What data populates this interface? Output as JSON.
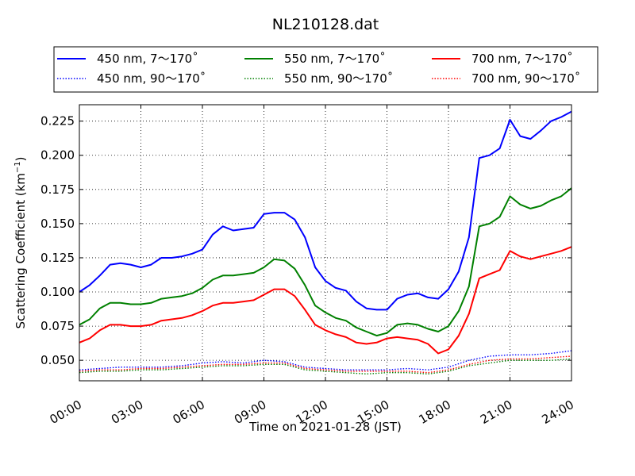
{
  "chart_data": {
    "type": "line",
    "title": "NL210128.dat",
    "xlabel": "Time on 2021-01-28 (JST)",
    "ylabel": "Scattering Coefficient (km",
    "ylabel_sup": "−1",
    "ylabel_end": ")",
    "xlim": [
      0,
      24
    ],
    "ylim": [
      0.035,
      0.237
    ],
    "x_tick_values": [
      0,
      3,
      6,
      9,
      12,
      15,
      18,
      21,
      24
    ],
    "x_tick_labels": [
      "00:00",
      "03:00",
      "06:00",
      "09:00",
      "12:00",
      "15:00",
      "18:00",
      "21:00",
      "24:00"
    ],
    "y_tick_values": [
      0.05,
      0.075,
      0.1,
      0.125,
      0.15,
      0.175,
      0.2,
      0.225
    ],
    "y_tick_labels": [
      "0.050",
      "0.075",
      "0.100",
      "0.125",
      "0.150",
      "0.175",
      "0.200",
      "0.225"
    ],
    "grid": true,
    "legend_placement": "top (above plot, 3 columns)",
    "series": [
      {
        "name": "450 nm, 7～170˚",
        "color": "#0000ff",
        "style": "solid",
        "x": [
          0,
          0.5,
          1,
          1.5,
          2,
          2.5,
          3,
          3.5,
          4,
          4.5,
          5,
          5.5,
          6,
          6.5,
          7,
          7.5,
          8,
          8.5,
          9,
          9.5,
          10,
          10.5,
          11,
          11.5,
          12,
          12.5,
          13,
          13.5,
          14,
          14.5,
          15,
          15.5,
          16,
          16.5,
          17,
          17.5,
          18,
          18.5,
          19,
          19.5,
          20,
          20.5,
          21,
          21.5,
          22,
          22.5,
          23,
          23.5,
          24
        ],
        "y": [
          0.1,
          0.105,
          0.112,
          0.12,
          0.121,
          0.12,
          0.118,
          0.12,
          0.125,
          0.125,
          0.126,
          0.128,
          0.131,
          0.142,
          0.148,
          0.145,
          0.146,
          0.147,
          0.157,
          0.158,
          0.158,
          0.153,
          0.14,
          0.118,
          0.108,
          0.103,
          0.101,
          0.093,
          0.088,
          0.087,
          0.087,
          0.095,
          0.098,
          0.099,
          0.096,
          0.095,
          0.102,
          0.115,
          0.14,
          0.198,
          0.2,
          0.205,
          0.226,
          0.214,
          0.212,
          0.218,
          0.225,
          0.228,
          0.232
        ]
      },
      {
        "name": "550 nm, 7～170˚",
        "color": "#008000",
        "style": "solid",
        "x": [
          0,
          0.5,
          1,
          1.5,
          2,
          2.5,
          3,
          3.5,
          4,
          4.5,
          5,
          5.5,
          6,
          6.5,
          7,
          7.5,
          8,
          8.5,
          9,
          9.5,
          10,
          10.5,
          11,
          11.5,
          12,
          12.5,
          13,
          13.5,
          14,
          14.5,
          15,
          15.5,
          16,
          16.5,
          17,
          17.5,
          18,
          18.5,
          19,
          19.5,
          20,
          20.5,
          21,
          21.5,
          22,
          22.5,
          23,
          23.5,
          24
        ],
        "y": [
          0.076,
          0.08,
          0.088,
          0.092,
          0.092,
          0.091,
          0.091,
          0.092,
          0.095,
          0.096,
          0.097,
          0.099,
          0.103,
          0.109,
          0.112,
          0.112,
          0.113,
          0.114,
          0.118,
          0.124,
          0.123,
          0.117,
          0.105,
          0.09,
          0.085,
          0.081,
          0.079,
          0.074,
          0.071,
          0.068,
          0.07,
          0.076,
          0.077,
          0.076,
          0.073,
          0.071,
          0.075,
          0.086,
          0.104,
          0.148,
          0.15,
          0.155,
          0.17,
          0.164,
          0.161,
          0.163,
          0.167,
          0.17,
          0.176
        ]
      },
      {
        "name": "700 nm, 7～170˚",
        "color": "#ff0000",
        "style": "solid",
        "x": [
          0,
          0.5,
          1,
          1.5,
          2,
          2.5,
          3,
          3.5,
          4,
          4.5,
          5,
          5.5,
          6,
          6.5,
          7,
          7.5,
          8,
          8.5,
          9,
          9.5,
          10,
          10.5,
          11,
          11.5,
          12,
          12.5,
          13,
          13.5,
          14,
          14.5,
          15,
          15.5,
          16,
          16.5,
          17,
          17.5,
          18,
          18.5,
          19,
          19.5,
          20,
          20.5,
          21,
          21.5,
          22,
          22.5,
          23,
          23.5,
          24
        ],
        "y": [
          0.063,
          0.066,
          0.072,
          0.076,
          0.076,
          0.075,
          0.075,
          0.076,
          0.079,
          0.08,
          0.081,
          0.083,
          0.086,
          0.09,
          0.092,
          0.092,
          0.093,
          0.094,
          0.098,
          0.102,
          0.102,
          0.097,
          0.087,
          0.076,
          0.072,
          0.069,
          0.067,
          0.063,
          0.062,
          0.063,
          0.066,
          0.067,
          0.066,
          0.065,
          0.062,
          0.055,
          0.058,
          0.068,
          0.084,
          0.11,
          0.113,
          0.116,
          0.13,
          0.126,
          0.124,
          0.126,
          0.128,
          0.13,
          0.133
        ]
      },
      {
        "name": "450 nm, 90～170˚",
        "color": "#0000ff",
        "style": "dotted",
        "x": [
          0,
          1,
          2,
          3,
          4,
          5,
          6,
          7,
          8,
          9,
          10,
          11,
          12,
          13,
          14,
          15,
          16,
          17,
          18,
          19,
          20,
          21,
          22,
          23,
          24
        ],
        "y": [
          0.043,
          0.044,
          0.045,
          0.045,
          0.045,
          0.046,
          0.048,
          0.049,
          0.048,
          0.05,
          0.049,
          0.045,
          0.044,
          0.043,
          0.043,
          0.043,
          0.044,
          0.043,
          0.045,
          0.05,
          0.053,
          0.054,
          0.054,
          0.055,
          0.057
        ]
      },
      {
        "name": "550 nm, 90～170˚",
        "color": "#008000",
        "style": "dotted",
        "x": [
          0,
          1,
          2,
          3,
          4,
          5,
          6,
          7,
          8,
          9,
          10,
          11,
          12,
          13,
          14,
          15,
          16,
          17,
          18,
          19,
          20,
          21,
          22,
          23,
          24
        ],
        "y": [
          0.041,
          0.042,
          0.042,
          0.043,
          0.043,
          0.044,
          0.045,
          0.046,
          0.046,
          0.047,
          0.047,
          0.043,
          0.042,
          0.041,
          0.04,
          0.041,
          0.041,
          0.04,
          0.042,
          0.046,
          0.048,
          0.05,
          0.05,
          0.05,
          0.051
        ]
      },
      {
        "name": "700 nm, 90～170˚",
        "color": "#ff0000",
        "style": "dotted",
        "x": [
          0,
          1,
          2,
          3,
          4,
          5,
          6,
          7,
          8,
          9,
          10,
          11,
          12,
          13,
          14,
          15,
          16,
          17,
          18,
          19,
          20,
          21,
          22,
          23,
          24
        ],
        "y": [
          0.042,
          0.043,
          0.043,
          0.044,
          0.044,
          0.045,
          0.046,
          0.047,
          0.047,
          0.048,
          0.048,
          0.044,
          0.043,
          0.042,
          0.042,
          0.042,
          0.042,
          0.041,
          0.043,
          0.047,
          0.05,
          0.051,
          0.051,
          0.052,
          0.053
        ]
      }
    ]
  }
}
